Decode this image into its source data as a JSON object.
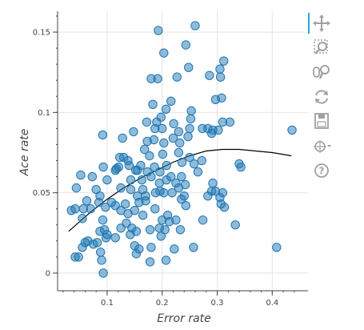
{
  "chart_data": {
    "type": "scatter",
    "xlabel": "Error rate",
    "ylabel": "Ace rate",
    "xlim": [
      0.01,
      0.465
    ],
    "ylim": [
      -0.011,
      0.163
    ],
    "x_ticks": [
      0.1,
      0.2,
      0.3,
      0.4
    ],
    "x_tick_labels": [
      "0.1",
      "0.2",
      "0.3",
      "0.4"
    ],
    "y_ticks": [
      0,
      0.05,
      0.1,
      0.15
    ],
    "y_tick_labels": [
      "0",
      "0.05",
      "0.1",
      "0.15"
    ],
    "grid": true,
    "point_color": "#1f77b4",
    "point_opacity": 0.5,
    "line_color": "#000000",
    "points": [
      [
        0.193,
        0.151
      ],
      [
        0.26,
        0.154
      ],
      [
        0.243,
        0.142
      ],
      [
        0.203,
        0.137
      ],
      [
        0.312,
        0.132
      ],
      [
        0.305,
        0.127
      ],
      [
        0.248,
        0.128
      ],
      [
        0.306,
        0.122
      ],
      [
        0.18,
        0.121
      ],
      [
        0.227,
        0.122
      ],
      [
        0.286,
        0.123
      ],
      [
        0.192,
        0.121
      ],
      [
        0.216,
        0.107
      ],
      [
        0.207,
        0.102
      ],
      [
        0.183,
        0.105
      ],
      [
        0.308,
        0.109
      ],
      [
        0.297,
        0.108
      ],
      [
        0.198,
        0.097
      ],
      [
        0.172,
        0.094
      ],
      [
        0.19,
        0.094
      ],
      [
        0.221,
        0.093
      ],
      [
        0.253,
        0.101
      ],
      [
        0.252,
        0.096
      ],
      [
        0.31,
        0.094
      ],
      [
        0.323,
        0.094
      ],
      [
        0.148,
        0.088
      ],
      [
        0.187,
        0.09
      ],
      [
        0.2,
        0.09
      ],
      [
        0.23,
        0.088
      ],
      [
        0.25,
        0.09
      ],
      [
        0.273,
        0.09
      ],
      [
        0.283,
        0.09
      ],
      [
        0.292,
        0.089
      ],
      [
        0.302,
        0.089
      ],
      [
        0.436,
        0.089
      ],
      [
        0.092,
        0.086
      ],
      [
        0.128,
        0.084
      ],
      [
        0.185,
        0.083
      ],
      [
        0.173,
        0.082
      ],
      [
        0.203,
        0.081
      ],
      [
        0.22,
        0.084
      ],
      [
        0.247,
        0.085
      ],
      [
        0.232,
        0.081
      ],
      [
        0.29,
        0.087
      ],
      [
        0.168,
        0.077
      ],
      [
        0.201,
        0.074
      ],
      [
        0.23,
        0.075
      ],
      [
        0.177,
        0.073
      ],
      [
        0.25,
        0.072
      ],
      [
        0.123,
        0.072
      ],
      [
        0.138,
        0.07
      ],
      [
        0.13,
        0.072
      ],
      [
        0.14,
        0.067
      ],
      [
        0.161,
        0.067
      ],
      [
        0.186,
        0.066
      ],
      [
        0.208,
        0.067
      ],
      [
        0.236,
        0.069
      ],
      [
        0.258,
        0.068
      ],
      [
        0.272,
        0.07
      ],
      [
        0.34,
        0.068
      ],
      [
        0.343,
        0.066
      ],
      [
        0.117,
        0.065
      ],
      [
        0.121,
        0.066
      ],
      [
        0.152,
        0.064
      ],
      [
        0.155,
        0.064
      ],
      [
        0.173,
        0.063
      ],
      [
        0.196,
        0.063
      ],
      [
        0.052,
        0.061
      ],
      [
        0.073,
        0.06
      ],
      [
        0.093,
        0.066
      ],
      [
        0.115,
        0.064
      ],
      [
        0.1,
        0.058
      ],
      [
        0.143,
        0.058
      ],
      [
        0.163,
        0.058
      ],
      [
        0.18,
        0.06
      ],
      [
        0.208,
        0.058
      ],
      [
        0.216,
        0.06
      ],
      [
        0.235,
        0.06
      ],
      [
        0.265,
        0.063
      ],
      [
        0.195,
        0.056
      ],
      [
        0.225,
        0.056
      ],
      [
        0.242,
        0.055
      ],
      [
        0.292,
        0.056
      ],
      [
        0.044,
        0.053
      ],
      [
        0.08,
        0.052
      ],
      [
        0.125,
        0.053
      ],
      [
        0.143,
        0.052
      ],
      [
        0.165,
        0.052
      ],
      [
        0.196,
        0.051
      ],
      [
        0.23,
        0.053
      ],
      [
        0.29,
        0.051
      ],
      [
        0.297,
        0.051
      ],
      [
        0.31,
        0.05
      ],
      [
        0.087,
        0.048
      ],
      [
        0.155,
        0.048
      ],
      [
        0.17,
        0.048
      ],
      [
        0.188,
        0.05
      ],
      [
        0.203,
        0.05
      ],
      [
        0.218,
        0.05
      ],
      [
        0.24,
        0.048
      ],
      [
        0.283,
        0.048
      ],
      [
        0.305,
        0.047
      ],
      [
        0.063,
        0.045
      ],
      [
        0.085,
        0.044
      ],
      [
        0.108,
        0.044
      ],
      [
        0.133,
        0.043
      ],
      [
        0.097,
        0.041
      ],
      [
        0.115,
        0.042
      ],
      [
        0.158,
        0.044
      ],
      [
        0.17,
        0.045
      ],
      [
        0.235,
        0.046
      ],
      [
        0.187,
        0.04
      ],
      [
        0.035,
        0.039
      ],
      [
        0.042,
        0.04
      ],
      [
        0.057,
        0.04
      ],
      [
        0.07,
        0.04
      ],
      [
        0.125,
        0.039
      ],
      [
        0.138,
        0.037
      ],
      [
        0.165,
        0.036
      ],
      [
        0.21,
        0.036
      ],
      [
        0.243,
        0.042
      ],
      [
        0.307,
        0.043
      ],
      [
        0.15,
        0.039
      ],
      [
        0.055,
        0.034
      ],
      [
        0.092,
        0.033
      ],
      [
        0.2,
        0.033
      ],
      [
        0.213,
        0.032
      ],
      [
        0.135,
        0.031
      ],
      [
        0.145,
        0.028
      ],
      [
        0.225,
        0.033
      ],
      [
        0.313,
        0.041
      ],
      [
        0.333,
        0.03
      ],
      [
        0.274,
        0.033
      ],
      [
        0.087,
        0.026
      ],
      [
        0.095,
        0.027
      ],
      [
        0.125,
        0.028
      ],
      [
        0.153,
        0.026
      ],
      [
        0.178,
        0.027
      ],
      [
        0.195,
        0.028
      ],
      [
        0.205,
        0.027
      ],
      [
        0.233,
        0.027
      ],
      [
        0.1,
        0.024
      ],
      [
        0.098,
        0.022
      ],
      [
        0.142,
        0.024
      ],
      [
        0.198,
        0.023
      ],
      [
        0.065,
        0.02
      ],
      [
        0.082,
        0.019
      ],
      [
        0.06,
        0.019
      ],
      [
        0.115,
        0.022
      ],
      [
        0.075,
        0.018
      ],
      [
        0.15,
        0.017
      ],
      [
        0.055,
        0.016
      ],
      [
        0.158,
        0.015
      ],
      [
        0.18,
        0.016
      ],
      [
        0.222,
        0.015
      ],
      [
        0.257,
        0.016
      ],
      [
        0.408,
        0.016
      ],
      [
        0.088,
        0.013
      ],
      [
        0.153,
        0.012
      ],
      [
        0.042,
        0.01
      ],
      [
        0.048,
        0.01
      ],
      [
        0.09,
        0.008
      ],
      [
        0.178,
        0.007
      ],
      [
        0.207,
        0.008
      ],
      [
        0.093,
        0.0
      ]
    ],
    "trend_line": [
      [
        0.03,
        0.026
      ],
      [
        0.05,
        0.032
      ],
      [
        0.07,
        0.038
      ],
      [
        0.1,
        0.046
      ],
      [
        0.13,
        0.053
      ],
      [
        0.16,
        0.059
      ],
      [
        0.19,
        0.064
      ],
      [
        0.22,
        0.069
      ],
      [
        0.25,
        0.073
      ],
      [
        0.28,
        0.076
      ],
      [
        0.31,
        0.077
      ],
      [
        0.34,
        0.077
      ],
      [
        0.37,
        0.076
      ],
      [
        0.4,
        0.075
      ],
      [
        0.435,
        0.073
      ]
    ]
  },
  "toolbar": {
    "tools": [
      {
        "name": "pan-tool",
        "icon": "pan-icon",
        "active": true
      },
      {
        "name": "box-zoom-tool",
        "icon": "box-zoom-icon",
        "active": false
      },
      {
        "name": "wheel-zoom-tool",
        "icon": "wheel-zoom-icon",
        "active": false
      },
      {
        "name": "reset-tool",
        "icon": "reset-icon",
        "active": false
      },
      {
        "name": "save-tool",
        "icon": "save-icon",
        "active": false
      },
      {
        "name": "hover-tool",
        "icon": "hover-icon",
        "active": false
      },
      {
        "name": "help-tool",
        "icon": "help-icon",
        "active": false
      }
    ],
    "accent_color": "#26aae1",
    "icon_color": "#a0a0a0"
  }
}
